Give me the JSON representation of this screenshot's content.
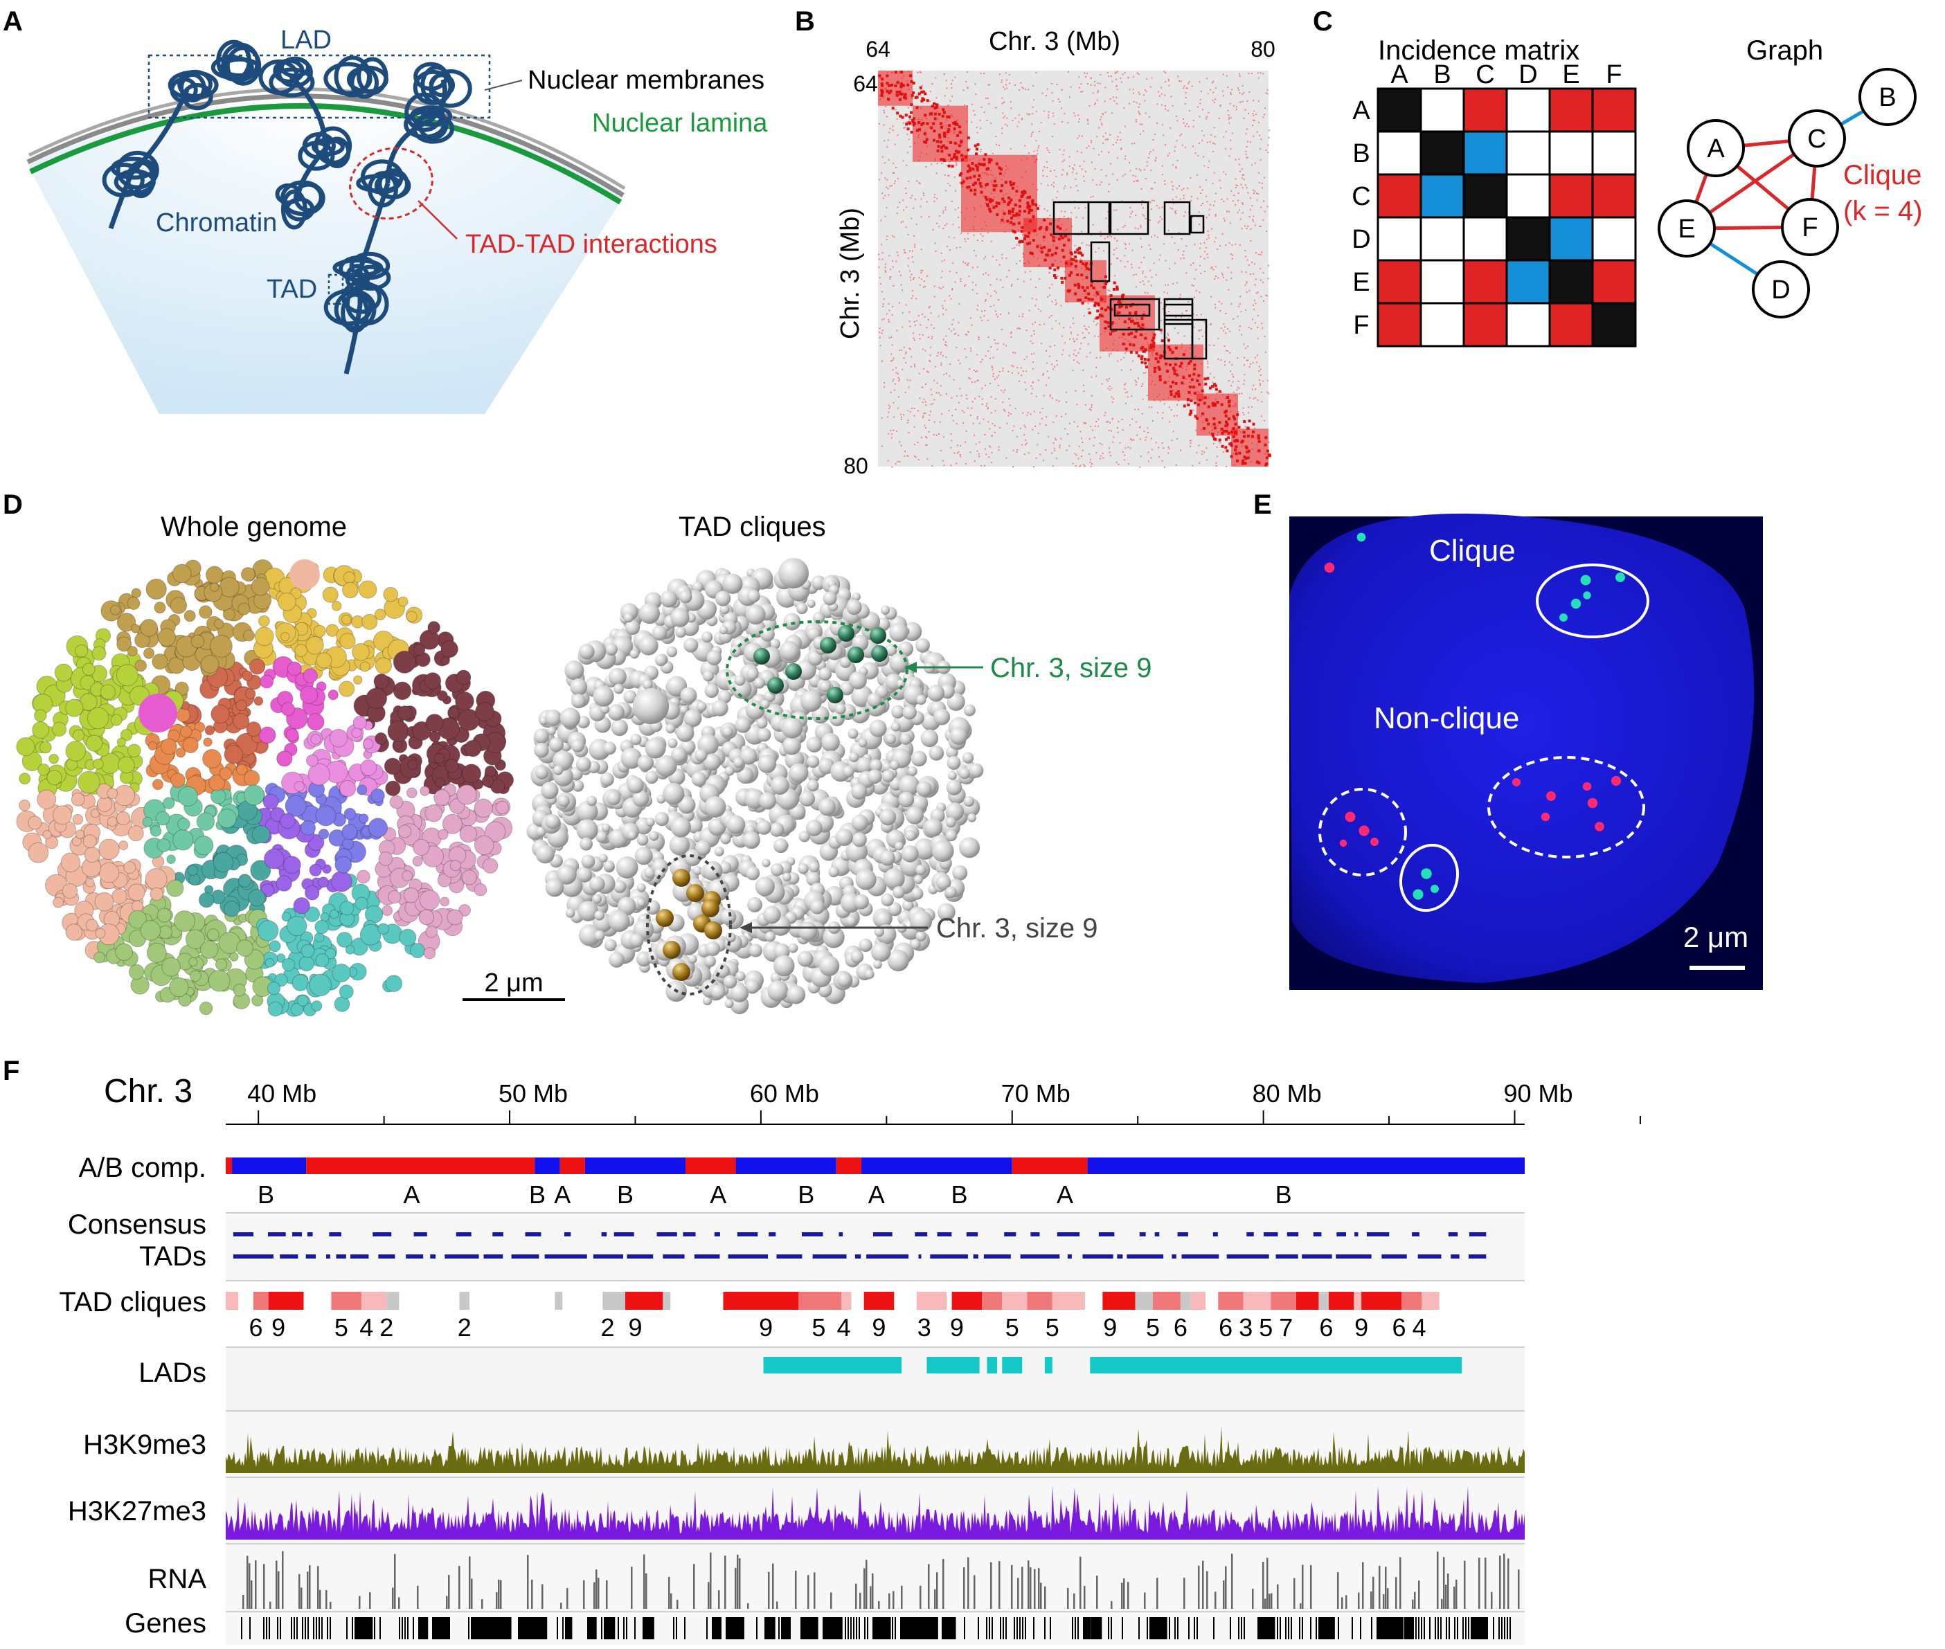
{
  "figure": {
    "panel_labels": [
      "A",
      "B",
      "C",
      "D",
      "E",
      "F"
    ]
  },
  "panel_a": {
    "labels": {
      "lad": "LAD",
      "membranes": "Nuclear membranes",
      "lamina": "Nuclear lamina",
      "chromatin": "Chromatin",
      "tad_tad": "TAD-TAD interactions",
      "tad": "TAD"
    },
    "colors": {
      "chromatin": "#1d4c7c",
      "lamina": "#1a9a3c",
      "membrane": "#8a8a8a",
      "tad_tad": "#d8282a",
      "nucleus": "#d9ecf7"
    }
  },
  "panel_b": {
    "title": "Chr. 3 (Mb)",
    "ylabel": "Chr. 3 (Mb)",
    "x_ticks": [
      "64",
      "80"
    ],
    "y_ticks": [
      "64",
      "80"
    ],
    "range_mb": [
      64,
      80
    ],
    "colors": {
      "map": "#ee1c1c",
      "background": "#e6e6e6"
    }
  },
  "panel_c": {
    "matrix_title": "Incidence matrix",
    "graph_title": "Graph",
    "nodes": [
      "A",
      "B",
      "C",
      "D",
      "E",
      "F"
    ],
    "matrix": [
      [
        "k",
        "w",
        "r",
        "w",
        "r",
        "r"
      ],
      [
        "w",
        "k",
        "b",
        "w",
        "w",
        "w"
      ],
      [
        "r",
        "b",
        "k",
        "w",
        "r",
        "r"
      ],
      [
        "w",
        "w",
        "w",
        "k",
        "b",
        "w"
      ],
      [
        "r",
        "w",
        "r",
        "b",
        "k",
        "r"
      ],
      [
        "r",
        "w",
        "r",
        "w",
        "r",
        "k"
      ]
    ],
    "clique_label": "Clique",
    "clique_k": "(k = 4)",
    "colors": {
      "k": "#111111",
      "w": "#ffffff",
      "r": "#e02424",
      "b": "#1590d8"
    }
  },
  "panel_d": {
    "title_left": "Whole genome",
    "title_right": "TAD cliques",
    "arrow_green": "Chr. 3, size 9",
    "arrow_gray": "Chr. 3, size 9",
    "scale_bar": "2 μm",
    "colors": {
      "green": "#1e8a4a",
      "gold": "#9a7a1a",
      "gray_sphere": "#c8c8c8"
    }
  },
  "panel_e": {
    "clique": "Clique",
    "non_clique": "Non-clique",
    "scale_bar": "2 μm",
    "colors": {
      "background": "#1414c8",
      "cyan": "#26e0b8",
      "magenta": "#ff2a70"
    }
  },
  "panel_f": {
    "chrom": "Chr. 3",
    "axis_labels": [
      "40 Mb",
      "50 Mb",
      "60 Mb",
      "70 Mb",
      "80 Mb",
      "90 Mb"
    ],
    "axis_values": [
      40,
      50,
      60,
      70,
      80,
      90
    ],
    "range_mb": [
      38.7,
      90.4
    ],
    "tracks": {
      "ab": "A/B comp.",
      "consensus_1": "Consensus",
      "consensus_2": "TADs",
      "cliques": "TAD cliques",
      "lads": "LADs",
      "h3k9": "H3K9me3",
      "h3k27": "H3K27me3",
      "rna": "RNA",
      "genes": "Genes"
    },
    "ab_segments": [
      {
        "start": 38.7,
        "end": 38.95,
        "comp": "A"
      },
      {
        "start": 38.95,
        "end": 41.9,
        "comp": "B"
      },
      {
        "start": 41.9,
        "end": 51.0,
        "comp": "A"
      },
      {
        "start": 51.0,
        "end": 52.0,
        "comp": "B"
      },
      {
        "start": 52.0,
        "end": 53.0,
        "comp": "A"
      },
      {
        "start": 53.0,
        "end": 57.0,
        "comp": "B"
      },
      {
        "start": 57.0,
        "end": 59.0,
        "comp": "A"
      },
      {
        "start": 59.0,
        "end": 63.0,
        "comp": "B"
      },
      {
        "start": 63.0,
        "end": 64.0,
        "comp": "A"
      },
      {
        "start": 64.0,
        "end": 70.0,
        "comp": "B"
      },
      {
        "start": 70.0,
        "end": 73.0,
        "comp": "A"
      },
      {
        "start": 73.0,
        "end": 90.4,
        "comp": "B"
      }
    ],
    "ab_letters": [
      {
        "text": "B",
        "mb": 40.3
      },
      {
        "text": "A",
        "mb": 46.1
      },
      {
        "text": "B",
        "mb": 51.1
      },
      {
        "text": "A",
        "mb": 52.1
      },
      {
        "text": "B",
        "mb": 54.6
      },
      {
        "text": "A",
        "mb": 58.3
      },
      {
        "text": "B",
        "mb": 61.8
      },
      {
        "text": "A",
        "mb": 64.6
      },
      {
        "text": "B",
        "mb": 67.9
      },
      {
        "text": "A",
        "mb": 72.1
      },
      {
        "text": "B",
        "mb": 80.8
      }
    ],
    "clique_numbers": [
      {
        "text": "6",
        "mb": 39.9
      },
      {
        "text": "9",
        "mb": 40.8
      },
      {
        "text": "5",
        "mb": 43.3
      },
      {
        "text": "4",
        "mb": 44.3
      },
      {
        "text": "2",
        "mb": 45.1
      },
      {
        "text": "2",
        "mb": 48.2
      },
      {
        "text": "2",
        "mb": 53.9
      },
      {
        "text": "9",
        "mb": 55.0
      },
      {
        "text": "9",
        "mb": 60.2
      },
      {
        "text": "5",
        "mb": 62.3
      },
      {
        "text": "4",
        "mb": 63.3
      },
      {
        "text": "9",
        "mb": 64.7
      },
      {
        "text": "3",
        "mb": 66.5
      },
      {
        "text": "9",
        "mb": 67.8
      },
      {
        "text": "5",
        "mb": 70.0
      },
      {
        "text": "5",
        "mb": 71.6
      },
      {
        "text": "9",
        "mb": 73.9
      },
      {
        "text": "5",
        "mb": 75.6
      },
      {
        "text": "6",
        "mb": 76.7
      },
      {
        "text": "6",
        "mb": 78.5
      },
      {
        "text": "3",
        "mb": 79.3
      },
      {
        "text": "5",
        "mb": 80.1
      },
      {
        "text": "7",
        "mb": 80.9
      },
      {
        "text": "6",
        "mb": 82.5
      },
      {
        "text": "9",
        "mb": 83.9
      },
      {
        "text": "6",
        "mb": 85.4
      },
      {
        "text": "4",
        "mb": 86.2
      }
    ],
    "clique_blocks": [
      {
        "start": 38.7,
        "end": 39.2,
        "level": 1
      },
      {
        "start": 39.8,
        "end": 40.4,
        "level": 2
      },
      {
        "start": 40.4,
        "end": 41.8,
        "level": 3
      },
      {
        "start": 42.9,
        "end": 44.1,
        "level": 2
      },
      {
        "start": 44.1,
        "end": 45.1,
        "level": 1
      },
      {
        "start": 45.1,
        "end": 45.6,
        "level": 0
      },
      {
        "start": 48.0,
        "end": 48.4,
        "level": 0
      },
      {
        "start": 51.8,
        "end": 52.1,
        "level": 0
      },
      {
        "start": 53.7,
        "end": 54.6,
        "level": 0
      },
      {
        "start": 54.6,
        "end": 56.1,
        "level": 3
      },
      {
        "start": 56.1,
        "end": 56.4,
        "level": 0
      },
      {
        "start": 58.5,
        "end": 61.5,
        "level": 3
      },
      {
        "start": 61.5,
        "end": 63.2,
        "level": 2
      },
      {
        "start": 63.2,
        "end": 63.6,
        "level": 1
      },
      {
        "start": 64.1,
        "end": 65.3,
        "level": 3
      },
      {
        "start": 66.2,
        "end": 67.4,
        "level": 1
      },
      {
        "start": 67.6,
        "end": 68.8,
        "level": 3
      },
      {
        "start": 68.8,
        "end": 69.6,
        "level": 2
      },
      {
        "start": 69.6,
        "end": 70.6,
        "level": 1
      },
      {
        "start": 70.6,
        "end": 71.6,
        "level": 2
      },
      {
        "start": 71.6,
        "end": 72.9,
        "level": 1
      },
      {
        "start": 73.6,
        "end": 74.9,
        "level": 3
      },
      {
        "start": 74.9,
        "end": 75.6,
        "level": 0
      },
      {
        "start": 75.6,
        "end": 76.7,
        "level": 2
      },
      {
        "start": 76.7,
        "end": 77.1,
        "level": 0
      },
      {
        "start": 77.1,
        "end": 77.7,
        "level": 1
      },
      {
        "start": 78.2,
        "end": 79.2,
        "level": 2
      },
      {
        "start": 79.2,
        "end": 80.3,
        "level": 1
      },
      {
        "start": 80.3,
        "end": 81.3,
        "level": 2
      },
      {
        "start": 81.3,
        "end": 82.2,
        "level": 3
      },
      {
        "start": 82.2,
        "end": 82.6,
        "level": 0
      },
      {
        "start": 82.6,
        "end": 83.6,
        "level": 3
      },
      {
        "start": 83.6,
        "end": 83.9,
        "level": 1
      },
      {
        "start": 83.9,
        "end": 85.5,
        "level": 3
      },
      {
        "start": 85.5,
        "end": 86.3,
        "level": 2
      },
      {
        "start": 86.3,
        "end": 87.0,
        "level": 1
      }
    ],
    "lad_segments": [
      {
        "start": 60.1,
        "end": 65.6
      },
      {
        "start": 66.6,
        "end": 68.7
      },
      {
        "start": 69.0,
        "end": 69.4
      },
      {
        "start": 69.6,
        "end": 70.4
      },
      {
        "start": 71.3,
        "end": 71.6
      },
      {
        "start": 73.1,
        "end": 87.9
      }
    ],
    "colors": {
      "A": "#ee1111",
      "B": "#1111ee",
      "consensus": "#1a1aa0",
      "lad": "#14c8c8",
      "h3k9": "#6b6b12",
      "h3k27": "#7a1ae0",
      "rna": "#666666",
      "genes": "#000000",
      "clique_levels": [
        "#c8c8c8",
        "#f7b9b9",
        "#f07878",
        "#ee1111"
      ]
    }
  }
}
